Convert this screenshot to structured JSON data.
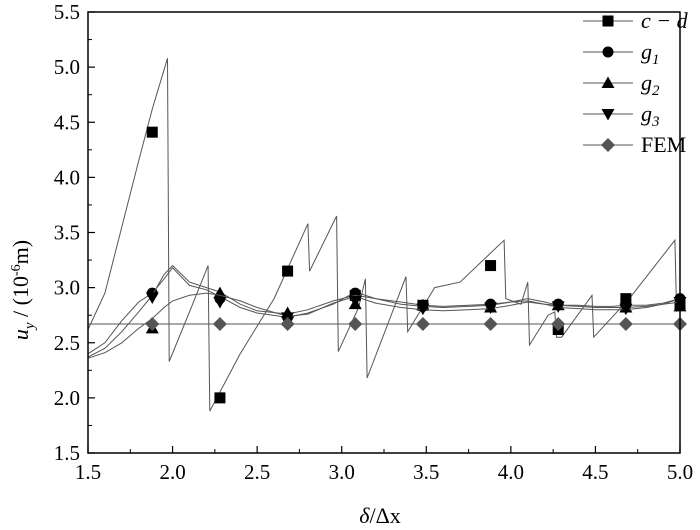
{
  "chart_data": {
    "type": "line",
    "xlabel_main": "δ",
    "xlabel_rest": "/Δx",
    "ylabel_u": "u",
    "ylabel_sub": "y",
    "ylabel_mid": " / (10",
    "ylabel_sup": "-6",
    "ylabel_end": "m)",
    "xlim": [
      1.5,
      5.0
    ],
    "ylim": [
      1.5,
      5.5
    ],
    "xticks": [
      "1.5",
      "2.0",
      "2.5",
      "3.0",
      "3.5",
      "4.0",
      "4.5",
      "5.0"
    ],
    "yticks": [
      "1.5",
      "2.0",
      "2.5",
      "3.0",
      "3.5",
      "4.0",
      "4.5",
      "5.0",
      "5.5"
    ],
    "legend_position": "top-right",
    "line_color": "#555555",
    "marker_color_dark": "#000000",
    "marker_color_fem": "#555555",
    "series": [
      {
        "name": "c−d",
        "legend_text": "c − d",
        "marker": "square",
        "curve": [
          [
            1.5,
            2.62
          ],
          [
            1.6,
            2.95
          ],
          [
            1.7,
            3.55
          ],
          [
            1.8,
            4.15
          ],
          [
            1.88,
            4.62
          ],
          [
            1.97,
            5.08
          ],
          [
            1.98,
            2.33
          ],
          [
            2.1,
            2.78
          ],
          [
            2.21,
            3.2
          ],
          [
            2.22,
            1.88
          ],
          [
            2.4,
            2.4
          ],
          [
            2.6,
            2.9
          ],
          [
            2.8,
            3.58
          ],
          [
            2.81,
            3.15
          ],
          [
            2.97,
            3.65
          ],
          [
            2.98,
            2.42
          ],
          [
            3.1,
            2.82
          ],
          [
            3.14,
            3.08
          ],
          [
            3.15,
            2.18
          ],
          [
            3.38,
            3.1
          ],
          [
            3.39,
            2.6
          ],
          [
            3.55,
            3.0
          ],
          [
            3.7,
            3.05
          ],
          [
            3.96,
            3.43
          ],
          [
            3.97,
            2.9
          ],
          [
            4.06,
            2.85
          ],
          [
            4.1,
            3.05
          ],
          [
            4.11,
            2.48
          ],
          [
            4.22,
            2.75
          ],
          [
            4.26,
            2.78
          ],
          [
            4.27,
            2.55
          ],
          [
            4.3,
            2.55
          ],
          [
            4.48,
            2.93
          ],
          [
            4.49,
            2.55
          ],
          [
            4.7,
            2.9
          ],
          [
            4.97,
            3.43
          ],
          [
            4.98,
            2.78
          ]
        ],
        "points": [
          [
            1.88,
            4.41
          ],
          [
            2.28,
            2.0
          ],
          [
            2.68,
            3.15
          ],
          [
            3.08,
            2.93
          ],
          [
            3.48,
            2.84
          ],
          [
            3.88,
            3.2
          ],
          [
            4.28,
            2.62
          ],
          [
            4.68,
            2.9
          ],
          [
            5.0,
            2.85
          ]
        ]
      },
      {
        "name": "g1",
        "legend_text": "g",
        "legend_sub": "1",
        "marker": "circle",
        "curve": [
          [
            1.5,
            2.4
          ],
          [
            1.6,
            2.5
          ],
          [
            1.7,
            2.7
          ],
          [
            1.8,
            2.87
          ],
          [
            1.88,
            2.95
          ],
          [
            1.95,
            3.08
          ],
          [
            2.0,
            3.18
          ],
          [
            2.1,
            3.02
          ],
          [
            2.2,
            2.98
          ],
          [
            2.28,
            2.92
          ],
          [
            2.4,
            2.82
          ],
          [
            2.5,
            2.77
          ],
          [
            2.68,
            2.73
          ],
          [
            2.8,
            2.77
          ],
          [
            2.95,
            2.85
          ],
          [
            3.08,
            2.96
          ],
          [
            3.2,
            2.9
          ],
          [
            3.35,
            2.87
          ],
          [
            3.48,
            2.84
          ],
          [
            3.6,
            2.83
          ],
          [
            3.75,
            2.84
          ],
          [
            3.88,
            2.85
          ],
          [
            4.0,
            2.87
          ],
          [
            4.1,
            2.88
          ],
          [
            4.2,
            2.85
          ],
          [
            4.28,
            2.84
          ],
          [
            4.4,
            2.84
          ],
          [
            4.5,
            2.83
          ],
          [
            4.6,
            2.83
          ],
          [
            4.68,
            2.84
          ],
          [
            4.8,
            2.84
          ],
          [
            4.9,
            2.86
          ],
          [
            5.0,
            2.9
          ]
        ],
        "points": [
          [
            1.88,
            2.95
          ],
          [
            2.28,
            2.9
          ],
          [
            2.68,
            2.73
          ],
          [
            3.08,
            2.95
          ],
          [
            3.48,
            2.83
          ],
          [
            3.88,
            2.85
          ],
          [
            4.28,
            2.85
          ],
          [
            4.68,
            2.84
          ],
          [
            5.0,
            2.9
          ]
        ]
      },
      {
        "name": "g2",
        "legend_text": "g",
        "legend_sub": "2",
        "marker": "triangle-up",
        "curve": [
          [
            1.5,
            2.37
          ],
          [
            1.6,
            2.45
          ],
          [
            1.7,
            2.6
          ],
          [
            1.8,
            2.78
          ],
          [
            1.88,
            2.93
          ],
          [
            1.95,
            3.12
          ],
          [
            2.0,
            3.2
          ],
          [
            2.1,
            3.05
          ],
          [
            2.2,
            3.0
          ],
          [
            2.28,
            2.96
          ],
          [
            2.4,
            2.85
          ],
          [
            2.5,
            2.79
          ],
          [
            2.68,
            2.76
          ],
          [
            2.8,
            2.8
          ],
          [
            2.95,
            2.88
          ],
          [
            3.08,
            2.93
          ],
          [
            3.2,
            2.9
          ],
          [
            3.35,
            2.85
          ],
          [
            3.48,
            2.83
          ],
          [
            3.6,
            2.82
          ],
          [
            3.75,
            2.83
          ],
          [
            3.88,
            2.84
          ],
          [
            4.0,
            2.87
          ],
          [
            4.1,
            2.9
          ],
          [
            4.2,
            2.87
          ],
          [
            4.28,
            2.84
          ],
          [
            4.4,
            2.83
          ],
          [
            4.5,
            2.82
          ],
          [
            4.6,
            2.82
          ],
          [
            4.68,
            2.82
          ],
          [
            4.8,
            2.83
          ],
          [
            4.9,
            2.85
          ],
          [
            5.0,
            2.87
          ]
        ],
        "points": [
          [
            1.88,
            2.63
          ],
          [
            2.28,
            2.95
          ],
          [
            2.68,
            2.77
          ],
          [
            3.08,
            2.85
          ],
          [
            3.48,
            2.84
          ],
          [
            3.88,
            2.82
          ],
          [
            4.28,
            2.84
          ],
          [
            4.68,
            2.82
          ],
          [
            5.0,
            2.83
          ]
        ]
      },
      {
        "name": "g3",
        "legend_text": "g",
        "legend_sub": "3",
        "marker": "triangle-down",
        "curve": [
          [
            1.5,
            2.36
          ],
          [
            1.6,
            2.41
          ],
          [
            1.7,
            2.5
          ],
          [
            1.8,
            2.63
          ],
          [
            1.88,
            2.72
          ],
          [
            1.95,
            2.82
          ],
          [
            2.0,
            2.88
          ],
          [
            2.1,
            2.93
          ],
          [
            2.2,
            2.95
          ],
          [
            2.28,
            2.93
          ],
          [
            2.4,
            2.88
          ],
          [
            2.5,
            2.82
          ],
          [
            2.68,
            2.74
          ],
          [
            2.8,
            2.76
          ],
          [
            2.95,
            2.86
          ],
          [
            3.08,
            2.92
          ],
          [
            3.2,
            2.86
          ],
          [
            3.35,
            2.82
          ],
          [
            3.48,
            2.8
          ],
          [
            3.6,
            2.79
          ],
          [
            3.75,
            2.8
          ],
          [
            3.88,
            2.81
          ],
          [
            4.0,
            2.84
          ],
          [
            4.1,
            2.87
          ],
          [
            4.2,
            2.85
          ],
          [
            4.28,
            2.82
          ],
          [
            4.4,
            2.81
          ],
          [
            4.5,
            2.8
          ],
          [
            4.6,
            2.8
          ],
          [
            4.68,
            2.8
          ],
          [
            4.8,
            2.82
          ],
          [
            4.9,
            2.85
          ],
          [
            5.0,
            2.9
          ]
        ],
        "points": [
          [
            1.88,
            2.91
          ],
          [
            2.28,
            2.87
          ],
          [
            2.68,
            2.73
          ],
          [
            3.08,
            2.88
          ],
          [
            3.48,
            2.81
          ],
          [
            3.88,
            2.82
          ],
          [
            4.28,
            2.83
          ],
          [
            4.68,
            2.81
          ],
          [
            5.0,
            2.87
          ]
        ]
      },
      {
        "name": "FEM",
        "legend_text": "FEM",
        "marker": "diamond",
        "curve": [
          [
            1.5,
            2.67
          ],
          [
            5.0,
            2.67
          ]
        ],
        "points": [
          [
            1.88,
            2.67
          ],
          [
            2.28,
            2.67
          ],
          [
            2.68,
            2.67
          ],
          [
            3.08,
            2.67
          ],
          [
            3.48,
            2.67
          ],
          [
            3.88,
            2.67
          ],
          [
            4.28,
            2.67
          ],
          [
            4.68,
            2.67
          ],
          [
            5.0,
            2.67
          ]
        ]
      }
    ]
  }
}
